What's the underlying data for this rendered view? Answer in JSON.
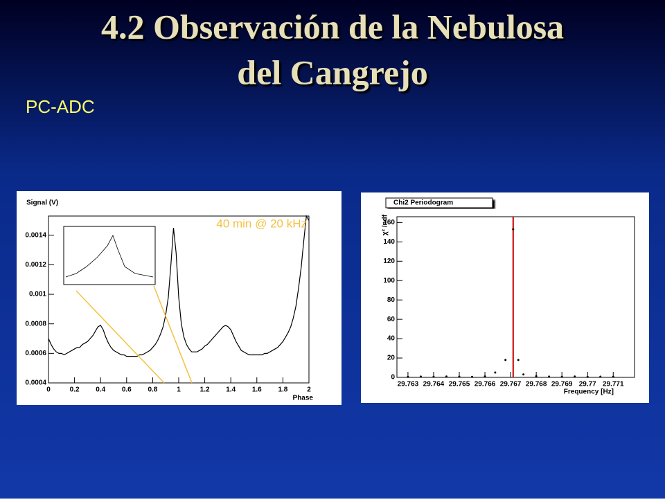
{
  "title_line1": "4.2 Observación de la Nebulosa",
  "title_line2": "del Cangrejo",
  "subtitle": "PC-ADC",
  "chart_data": [
    {
      "type": "line",
      "ylabel": "Signal (V)",
      "xlabel": "Phase",
      "annotation": "40 min @ 20 kHz",
      "color": "#000000",
      "x": [
        0,
        0.02,
        0.04,
        0.06,
        0.08,
        0.1,
        0.12,
        0.14,
        0.16,
        0.18,
        0.2,
        0.22,
        0.24,
        0.26,
        0.28,
        0.3,
        0.32,
        0.34,
        0.36,
        0.38,
        0.4,
        0.42,
        0.44,
        0.46,
        0.48,
        0.5,
        0.52,
        0.54,
        0.56,
        0.58,
        0.6,
        0.62,
        0.64,
        0.66,
        0.68,
        0.7,
        0.72,
        0.74,
        0.76,
        0.78,
        0.8,
        0.82,
        0.84,
        0.86,
        0.88,
        0.9,
        0.92,
        0.94,
        0.96,
        0.98,
        1,
        1.02,
        1.04,
        1.06,
        1.08,
        1.1,
        1.12,
        1.14,
        1.16,
        1.18,
        1.2,
        1.22,
        1.24,
        1.26,
        1.28,
        1.3,
        1.32,
        1.34,
        1.36,
        1.38,
        1.4,
        1.42,
        1.44,
        1.46,
        1.48,
        1.5,
        1.52,
        1.54,
        1.56,
        1.58,
        1.6,
        1.62,
        1.64,
        1.66,
        1.68,
        1.7,
        1.72,
        1.74,
        1.76,
        1.78,
        1.8,
        1.82,
        1.84,
        1.86,
        1.88,
        1.9,
        1.92,
        1.94,
        1.96,
        1.98,
        2
      ],
      "values": [
        0.0007,
        0.00066,
        0.00063,
        0.00061,
        0.0006,
        0.0006,
        0.00059,
        0.0006,
        0.00061,
        0.00062,
        0.00063,
        0.00064,
        0.00064,
        0.00066,
        0.00067,
        0.00068,
        0.0007,
        0.00072,
        0.00075,
        0.00078,
        0.00079,
        0.00076,
        0.00071,
        0.00067,
        0.00064,
        0.00062,
        0.00061,
        0.0006,
        0.00059,
        0.00059,
        0.00058,
        0.00058,
        0.00058,
        0.00058,
        0.00058,
        0.00059,
        0.00059,
        0.0006,
        0.00061,
        0.00062,
        0.00064,
        0.00066,
        0.00069,
        0.00073,
        0.00078,
        0.00086,
        0.00098,
        0.0012,
        0.00145,
        0.00128,
        0.00098,
        0.0008,
        0.00071,
        0.00066,
        0.00063,
        0.00061,
        0.00061,
        0.00061,
        0.00062,
        0.00063,
        0.00065,
        0.00066,
        0.00068,
        0.0007,
        0.00072,
        0.00074,
        0.00076,
        0.00078,
        0.00079,
        0.00078,
        0.00076,
        0.00072,
        0.00068,
        0.00065,
        0.00062,
        0.00061,
        0.0006,
        0.00059,
        0.00059,
        0.00059,
        0.00059,
        0.00059,
        0.00059,
        0.0006,
        0.0006,
        0.00061,
        0.00062,
        0.00063,
        0.00064,
        0.00066,
        0.00068,
        0.00071,
        0.00074,
        0.00078,
        0.00084,
        0.00092,
        0.00104,
        0.00118,
        0.00136,
        0.00153,
        0.0015
      ],
      "xlim": [
        0,
        2
      ],
      "xticks": [
        0,
        0.2,
        0.4,
        0.6,
        0.8,
        1,
        1.2,
        1.4,
        1.6,
        1.8,
        2
      ],
      "ylim": [
        0.0004,
        0.00153
      ],
      "yticks": [
        0.0004,
        0.0006,
        0.0008,
        0.001,
        0.0012,
        0.0014
      ]
    },
    {
      "type": "scatter",
      "title": "Chi2 Periodogram",
      "ylabel": "χ² /ndf",
      "xlabel": "Frequency [Hz]",
      "color": "#000000",
      "marker_color": "#cc0000",
      "marker_x": 29.7671,
      "x": [
        29.763,
        29.7635,
        29.764,
        29.7645,
        29.765,
        29.7655,
        29.766,
        29.7664,
        29.7668,
        29.7671,
        29.7673,
        29.7675,
        29.768,
        29.7685,
        29.769,
        29.7695,
        29.77,
        29.7705,
        29.771
      ],
      "values": [
        0.5,
        0.8,
        0.6,
        0.9,
        0.7,
        0.5,
        1,
        5,
        18,
        153,
        18,
        3,
        1.2,
        0.8,
        0.6,
        0.9,
        0.5,
        0.7,
        0.6
      ],
      "xlim": [
        29.76257,
        29.77183
      ],
      "xticks": [
        29.763,
        29.764,
        29.765,
        29.766,
        29.767,
        29.768,
        29.769,
        29.77,
        29.771
      ],
      "ylim": [
        0,
        166
      ],
      "yticks": [
        0,
        20,
        40,
        60,
        80,
        100,
        120,
        140,
        160
      ]
    }
  ]
}
